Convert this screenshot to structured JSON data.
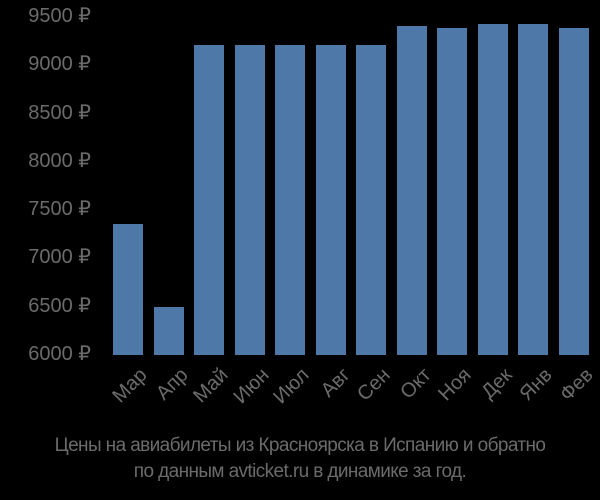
{
  "chart_data": {
    "type": "bar",
    "title": "Цены на авиабилеты из Красноярска в Испанию и обратно по данным avticket.ru в динамике за год.",
    "xlabel": "",
    "ylabel": "",
    "categories": [
      "Мар",
      "Апр",
      "Май",
      "Июн",
      "Июл",
      "Авг",
      "Сен",
      "Окт",
      "Ноя",
      "Дек",
      "Янв",
      "Фев"
    ],
    "values": [
      7350,
      6490,
      9200,
      9200,
      9200,
      9200,
      9200,
      9400,
      9380,
      9420,
      9420,
      9380
    ],
    "ylim": [
      6000,
      9500
    ],
    "yticks": [
      6000,
      6500,
      7000,
      7500,
      8000,
      8500,
      9000,
      9500
    ],
    "ytick_labels": [
      "6000 ₽",
      "6500 ₽",
      "7000 ₽",
      "7500 ₽",
      "8000 ₽",
      "8500 ₽",
      "9000 ₽",
      "9500 ₽"
    ],
    "grid": false,
    "legend": "none",
    "bar_color": "#4e78a8"
  },
  "caption": {
    "line1": "Цены на авиабилеты из Красноярска в Испанию и обратно",
    "line2": "по данным avticket.ru в динамике за год."
  },
  "colors": {
    "background": "#000000",
    "bar": "#4e78a8",
    "text": "#6b6b6b"
  }
}
